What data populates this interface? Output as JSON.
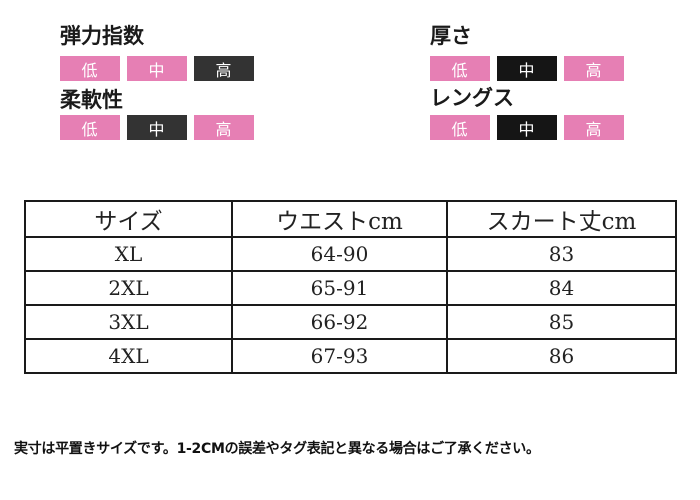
{
  "attributes": {
    "elasticity": {
      "title": "弾力指数",
      "levels": [
        "低",
        "中",
        "高"
      ],
      "selected": "高"
    },
    "softness": {
      "title": "柔軟性",
      "levels": [
        "低",
        "中",
        "高"
      ],
      "selected": "中"
    },
    "thickness": {
      "title": "厚さ",
      "levels": [
        "低",
        "中",
        "高"
      ],
      "selected": "中"
    },
    "length": {
      "title": "レングス",
      "levels": [
        "低",
        "中",
        "高"
      ],
      "selected": "中"
    }
  },
  "colors": {
    "unselected": "#e67fb4",
    "selected_dark": "#333333",
    "selected_black": "#151515"
  },
  "size_table": {
    "headers": [
      "サイズ",
      "ウエストcm",
      "スカート丈cm"
    ],
    "rows": [
      [
        "XL",
        "64-90",
        "83"
      ],
      [
        "2XL",
        "65-91",
        "84"
      ],
      [
        "3XL",
        "66-92",
        "85"
      ],
      [
        "4XL",
        "67-93",
        "86"
      ]
    ]
  },
  "footnote": "実寸は平置きサイズです。1-2CMの誤差やタグ表記と異なる場合はご了承ください。"
}
